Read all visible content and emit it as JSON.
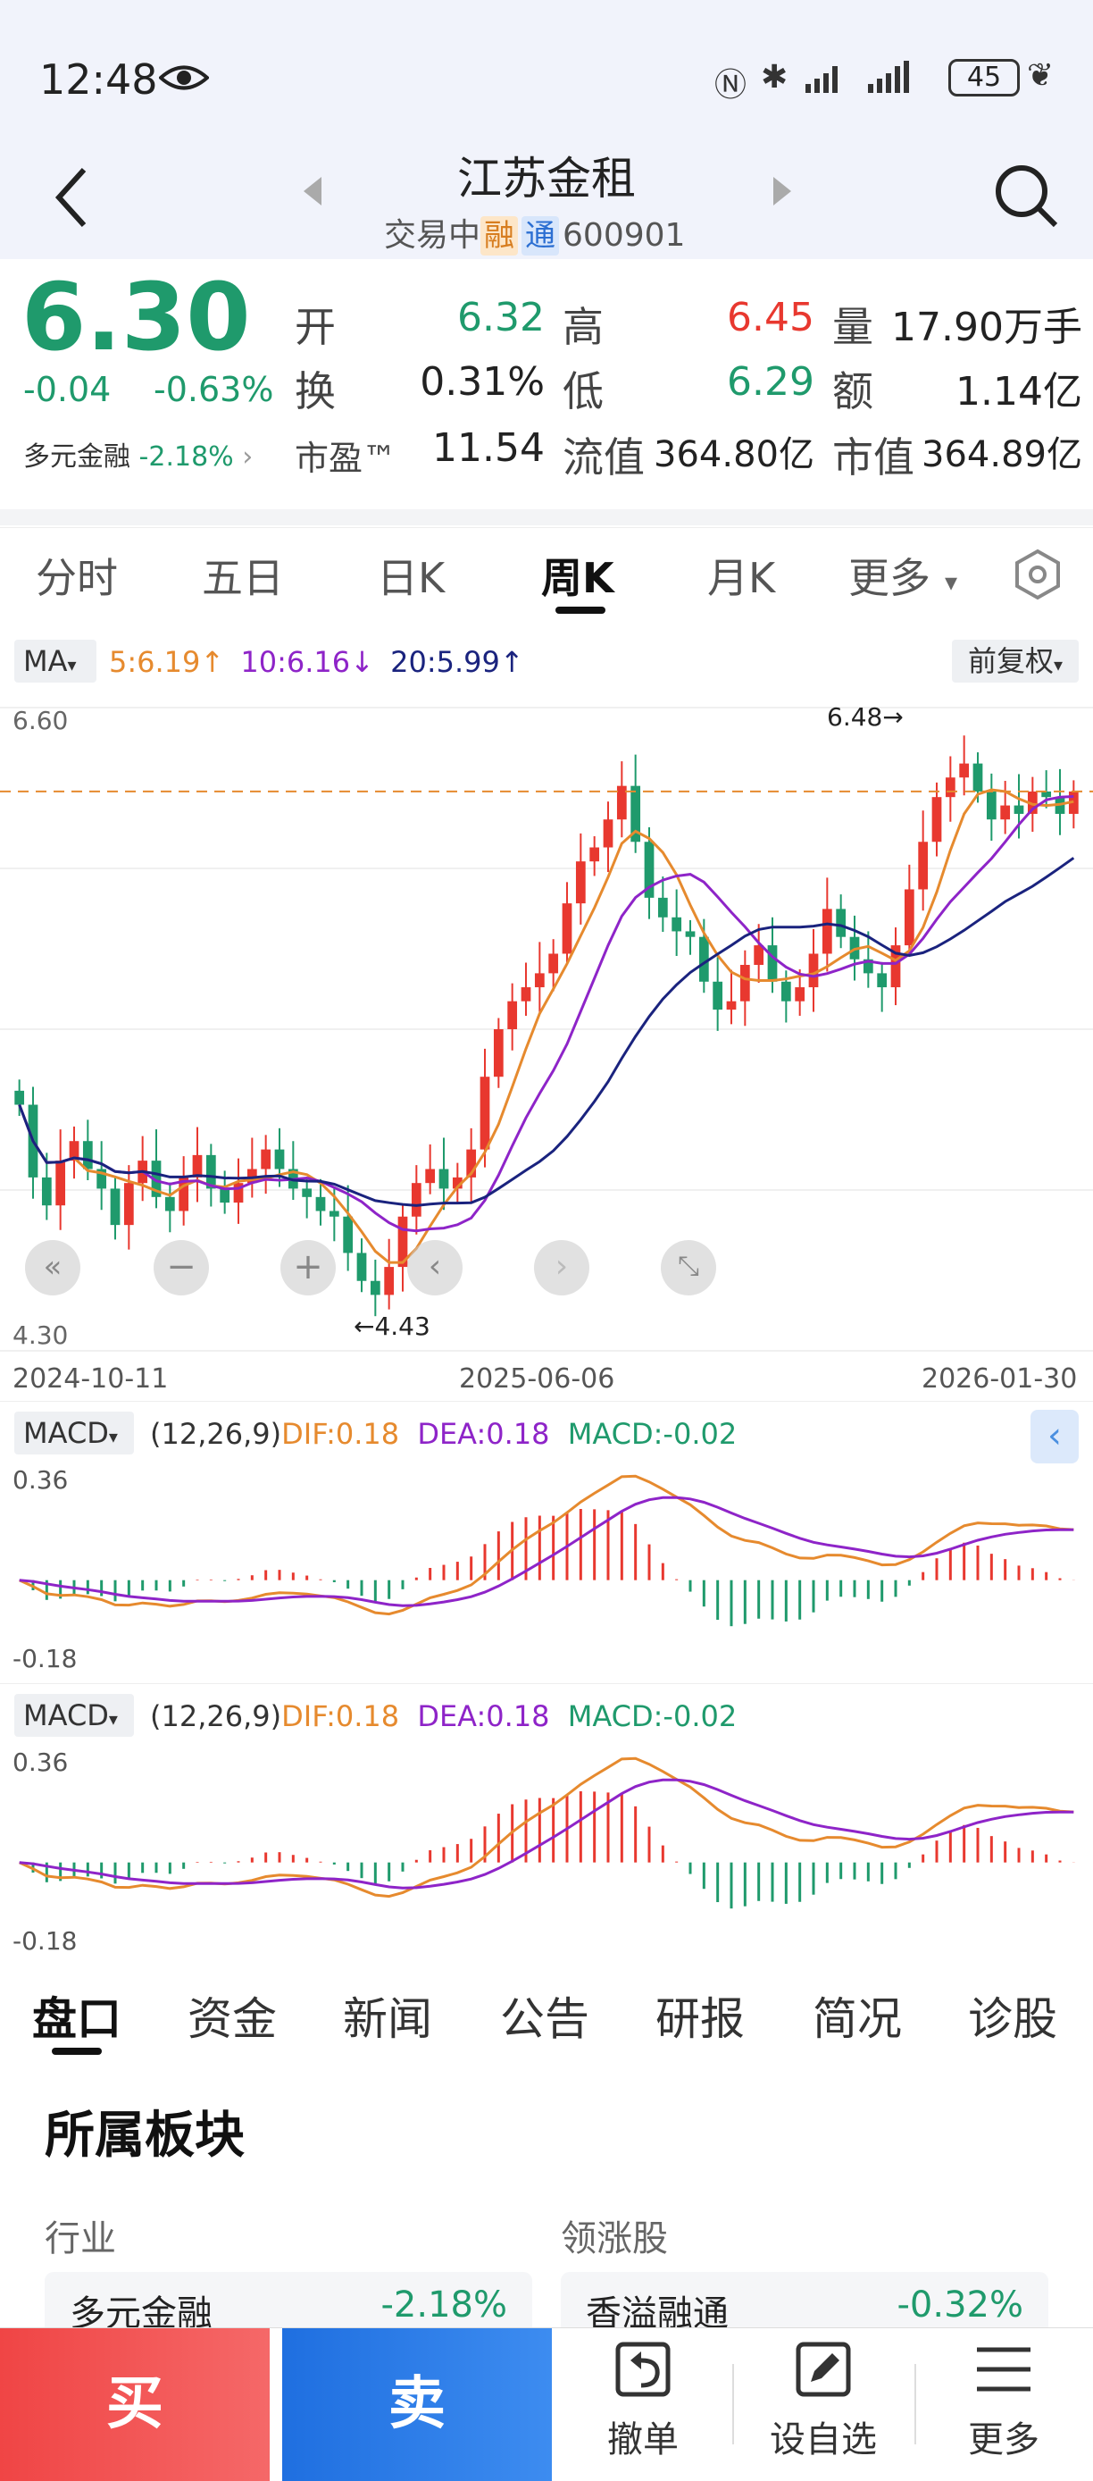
{
  "status_bar": {
    "time": "12:48",
    "battery": "45"
  },
  "header": {
    "title": "江苏金租",
    "status": "交易中",
    "tag_rong": "融",
    "tag_tong": "通",
    "code": "600901"
  },
  "quote": {
    "price": "6.30",
    "change": "-0.04",
    "change_pct": "-0.63%",
    "sector_name": "多元金融",
    "sector_pct": "-2.18%",
    "open_label": "开",
    "open": "6.32",
    "high_label": "高",
    "high": "6.45",
    "vol_label": "量",
    "vol": "17.90万手",
    "turn_label": "换",
    "turn": "0.31%",
    "low_label": "低",
    "low": "6.29",
    "amount_label": "额",
    "amount": "1.14亿",
    "pe_label": "市盈™",
    "pe": "11.54",
    "float_label": "流值",
    "float_cap": "364.80亿",
    "mcap_label": "市值",
    "mcap": "364.89亿"
  },
  "kline_tabs": [
    "分时",
    "五日",
    "日K",
    "周K",
    "月K",
    "更多"
  ],
  "active_tab": "周K",
  "ma_bar": {
    "selector": "MA",
    "ma5": "5:6.19",
    "ma10": "10:6.16",
    "ma20": "20:5.99",
    "adjust": "前复权"
  },
  "main_chart": {
    "y_top": "6.60",
    "y_bottom": "4.30",
    "max_note": "6.48→",
    "min_note": "←4.43",
    "dates": [
      "2024-10-11",
      "2025-06-06",
      "2026-01-30"
    ]
  },
  "macd": {
    "selector": "MACD",
    "params": "(12,26,9)",
    "dif": "DIF:0.18",
    "dea": "DEA:0.18",
    "macd": "MACD:-0.02",
    "y_top": "0.36",
    "y_bottom": "-0.18"
  },
  "bottom_tabs": [
    "盘口",
    "资金",
    "新闻",
    "公告",
    "研报",
    "简况",
    "诊股"
  ],
  "sector": {
    "title": "所属板块",
    "industry_label": "行业",
    "lead_label": "领涨股",
    "industry_name": "多元金融",
    "industry_pct": "-2.18%",
    "lead_name": "香溢融通",
    "lead_pct": "-0.32%"
  },
  "actions": {
    "buy": "买",
    "sell": "卖",
    "cancel": "撤单",
    "watch": "设自选",
    "more": "更多"
  },
  "colors": {
    "up": "#e8382f",
    "down": "#1f9a6c",
    "ma5": "#e68a2e",
    "ma10": "#8e24c8",
    "ma20": "#1a237e"
  },
  "chart_data": {
    "type": "candlestick",
    "period": "weekly",
    "x_range": [
      "2024-10-11",
      "2026-01-30"
    ],
    "ylim": [
      4.3,
      6.6
    ],
    "current_price": 6.3,
    "max": 6.48,
    "min": 4.43,
    "ma": {
      "ma5": 6.19,
      "ma10": 6.16,
      "ma20": 5.99
    },
    "closes": [
      5.18,
      4.92,
      4.82,
      4.98,
      5.05,
      4.95,
      4.88,
      4.75,
      4.9,
      4.98,
      4.85,
      4.8,
      4.92,
      5.0,
      4.88,
      4.83,
      4.9,
      4.95,
      5.02,
      4.95,
      4.88,
      4.85,
      4.8,
      4.78,
      4.65,
      4.55,
      4.5,
      4.6,
      4.78,
      4.9,
      4.95,
      4.88,
      4.92,
      5.02,
      5.28,
      5.45,
      5.55,
      5.6,
      5.65,
      5.72,
      5.9,
      6.05,
      6.1,
      6.2,
      6.32,
      6.12,
      5.92,
      5.85,
      5.8,
      5.78,
      5.62,
      5.52,
      5.55,
      5.68,
      5.75,
      5.62,
      5.55,
      5.6,
      5.72,
      5.88,
      5.78,
      5.7,
      5.65,
      5.6,
      5.75,
      5.95,
      6.12,
      6.28,
      6.35,
      6.4,
      6.3,
      6.2,
      6.25,
      6.22,
      6.3,
      6.28,
      6.22,
      6.3
    ],
    "macd_ylim": [
      -0.18,
      0.36
    ]
  }
}
